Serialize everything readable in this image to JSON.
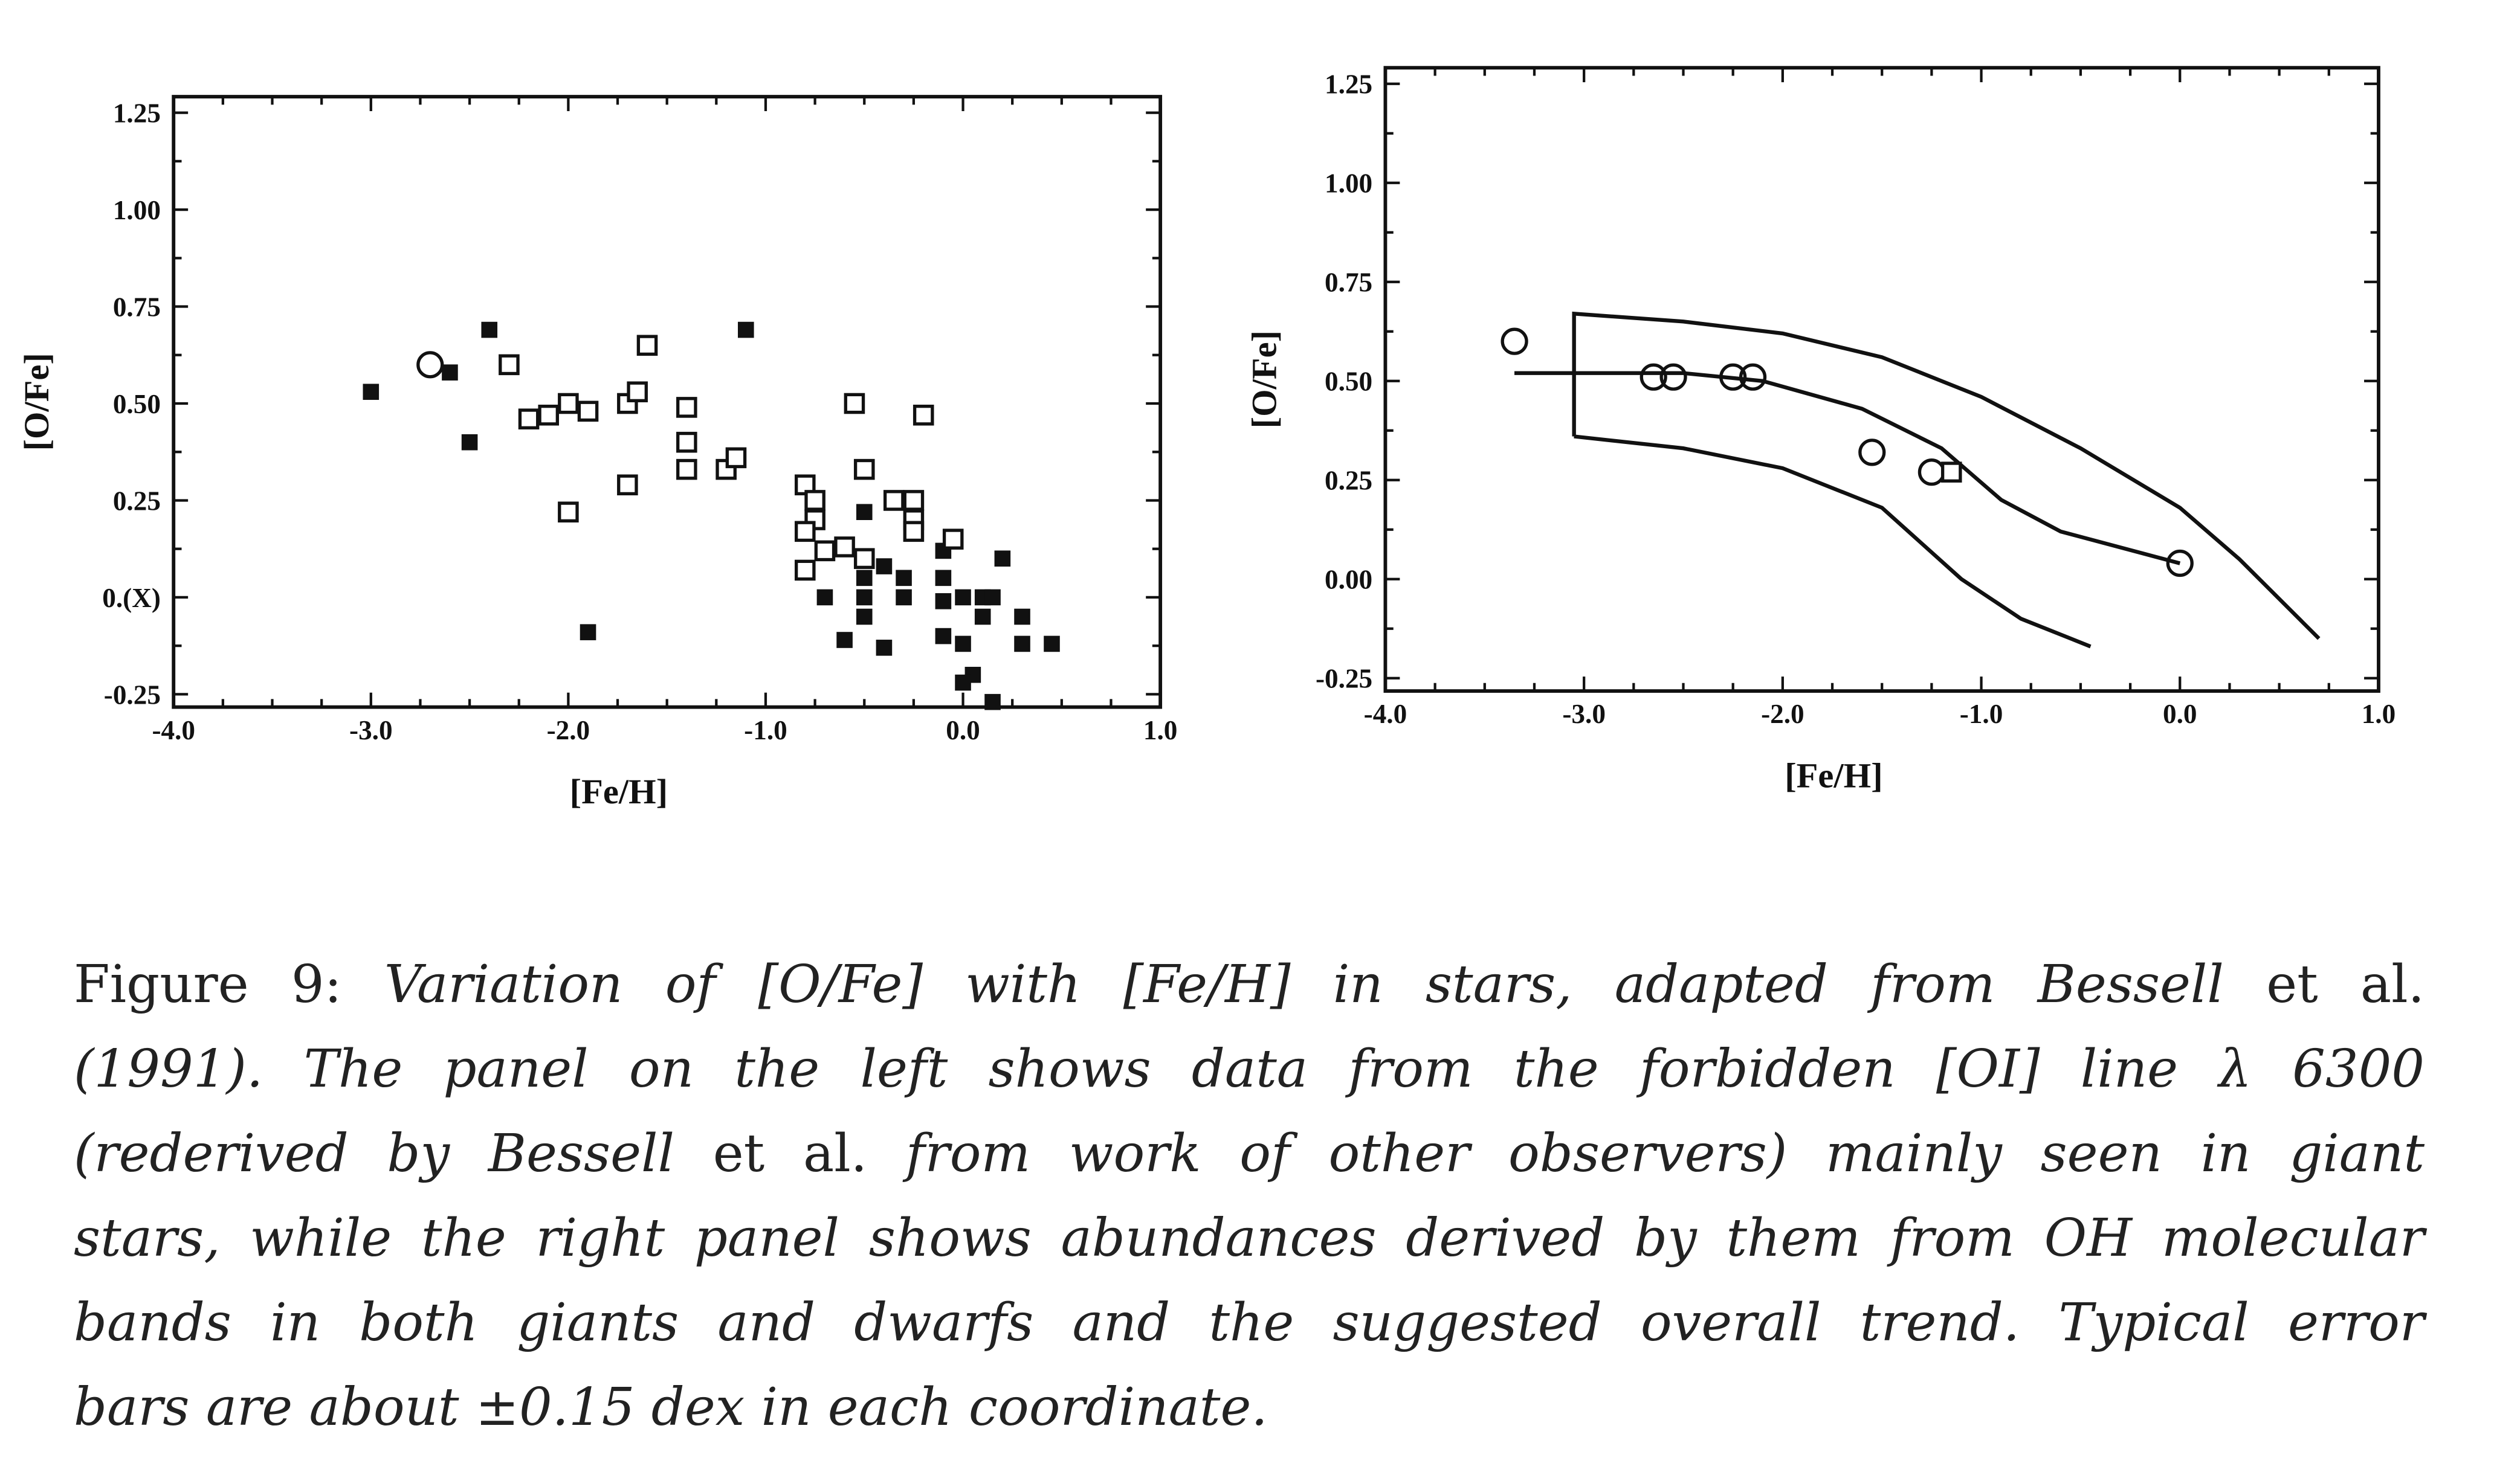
{
  "chart_data": [
    {
      "type": "scatter",
      "xlabel": "[Fe/H]",
      "ylabel": "[O/Fe]",
      "xlim": [
        -4.0,
        1.0
      ],
      "ylim": [
        -0.25,
        1.25
      ],
      "xticks": [
        "-4.0",
        "-3.0",
        "-2.0",
        "-1.0",
        "0.0",
        "1.0"
      ],
      "xtick_values": [
        -4,
        -3,
        -2,
        -1,
        0,
        1
      ],
      "yticks": [
        "1.25",
        "1.00",
        "0.75",
        "0.50",
        "0.25",
        "0.(X)",
        "-0.25"
      ],
      "ytick_values": [
        1.25,
        1.0,
        0.75,
        0.5,
        0.25,
        0.0,
        -0.25
      ],
      "grid": false,
      "series": [
        {
          "marker": "filled-square",
          "points": [
            [
              -3.0,
              0.53
            ],
            [
              -2.6,
              0.58
            ],
            [
              -2.4,
              0.69
            ],
            [
              -2.5,
              0.4
            ],
            [
              -1.9,
              -0.09
            ],
            [
              -1.1,
              0.69
            ],
            [
              -0.5,
              0.22
            ],
            [
              -0.5,
              0.05
            ],
            [
              -0.4,
              0.08
            ],
            [
              -0.3,
              0.05
            ],
            [
              -0.7,
              0.0
            ],
            [
              -0.5,
              0.0
            ],
            [
              -0.3,
              0.0
            ],
            [
              -0.1,
              0.12
            ],
            [
              -0.1,
              0.05
            ],
            [
              -0.1,
              -0.01
            ],
            [
              0.0,
              0.0
            ],
            [
              0.1,
              0.0
            ],
            [
              0.15,
              0.0
            ],
            [
              0.2,
              0.1
            ],
            [
              -0.5,
              -0.05
            ],
            [
              -0.1,
              -0.1
            ],
            [
              0.0,
              -0.12
            ],
            [
              0.1,
              -0.05
            ],
            [
              0.3,
              -0.05
            ],
            [
              0.3,
              -0.12
            ],
            [
              0.45,
              -0.12
            ],
            [
              -0.6,
              -0.11
            ],
            [
              -0.4,
              -0.13
            ],
            [
              0.05,
              -0.2
            ],
            [
              0.0,
              -0.22
            ],
            [
              0.15,
              -0.27
            ]
          ]
        },
        {
          "marker": "open-square",
          "points": [
            [
              -2.3,
              0.6
            ],
            [
              -2.2,
              0.46
            ],
            [
              -2.1,
              0.47
            ],
            [
              -2.0,
              0.5
            ],
            [
              -1.9,
              0.48
            ],
            [
              -1.7,
              0.5
            ],
            [
              -1.65,
              0.53
            ],
            [
              -1.6,
              0.65
            ],
            [
              -1.4,
              0.49
            ],
            [
              -1.4,
              0.4
            ],
            [
              -1.4,
              0.33
            ],
            [
              -1.2,
              0.33
            ],
            [
              -1.15,
              0.36
            ],
            [
              -2.0,
              0.22
            ],
            [
              -1.7,
              0.29
            ],
            [
              -0.8,
              0.29
            ],
            [
              -0.75,
              0.25
            ],
            [
              -0.75,
              0.2
            ],
            [
              -0.8,
              0.17
            ],
            [
              -0.7,
              0.12
            ],
            [
              -0.8,
              0.07
            ],
            [
              -0.6,
              0.13
            ],
            [
              -0.55,
              0.5
            ],
            [
              -0.5,
              0.33
            ],
            [
              -0.2,
              0.47
            ],
            [
              -0.35,
              0.25
            ],
            [
              -0.25,
              0.25
            ],
            [
              -0.25,
              0.2
            ],
            [
              -0.25,
              0.17
            ],
            [
              -0.05,
              0.15
            ],
            [
              -0.5,
              0.1
            ]
          ]
        },
        {
          "marker": "open-circle",
          "points": [
            [
              -2.7,
              0.6
            ]
          ]
        }
      ]
    },
    {
      "type": "scatter",
      "xlabel": "[Fe/H]",
      "ylabel": "[O/Fe]",
      "xlim": [
        -4.0,
        1.0
      ],
      "ylim": [
        -0.25,
        1.25
      ],
      "xticks": [
        "-4.0",
        "-3.0",
        "-2.0",
        "-1.0",
        "0.0",
        "1.0"
      ],
      "xtick_values": [
        -4,
        -3,
        -2,
        -1,
        0,
        1
      ],
      "yticks": [
        "1.25",
        "1.00",
        "0.75",
        "0.50",
        "0.25",
        "0.00",
        "-0.25"
      ],
      "ytick_values": [
        1.25,
        1.0,
        0.75,
        0.5,
        0.25,
        0.0,
        -0.25
      ],
      "grid": false,
      "series": [
        {
          "marker": "open-circle",
          "points": [
            [
              -3.35,
              0.6
            ],
            [
              -2.65,
              0.51
            ],
            [
              -2.55,
              0.51
            ],
            [
              -2.25,
              0.51
            ],
            [
              -2.15,
              0.51
            ],
            [
              -1.55,
              0.32
            ],
            [
              -1.25,
              0.27
            ],
            [
              0.0,
              0.04
            ]
          ]
        },
        {
          "marker": "open-square",
          "points": [
            [
              -1.15,
              0.27
            ]
          ]
        }
      ],
      "lines": [
        {
          "role": "trend",
          "points": [
            [
              -3.35,
              0.52
            ],
            [
              -2.5,
              0.52
            ],
            [
              -2.1,
              0.5
            ],
            [
              -1.6,
              0.43
            ],
            [
              -1.2,
              0.33
            ],
            [
              -0.9,
              0.2
            ],
            [
              -0.6,
              0.12
            ],
            [
              0.0,
              0.04
            ]
          ]
        },
        {
          "role": "band-upper",
          "points": [
            [
              -3.05,
              0.36
            ],
            [
              -3.05,
              0.67
            ],
            [
              -2.5,
              0.65
            ],
            [
              -2.0,
              0.62
            ],
            [
              -1.5,
              0.56
            ],
            [
              -1.0,
              0.46
            ],
            [
              -0.5,
              0.33
            ],
            [
              0.0,
              0.18
            ],
            [
              0.3,
              0.05
            ],
            [
              0.7,
              -0.15
            ]
          ]
        },
        {
          "role": "band-lower",
          "points": [
            [
              -3.05,
              0.36
            ],
            [
              -2.5,
              0.33
            ],
            [
              -2.0,
              0.28
            ],
            [
              -1.5,
              0.18
            ],
            [
              -1.1,
              0.0
            ],
            [
              -0.8,
              -0.1
            ],
            [
              -0.45,
              -0.17
            ]
          ]
        }
      ]
    }
  ],
  "caption": {
    "l1a": "Figure 9:",
    "l1b": "Variation of [O/Fe] with [Fe/H] in stars, adapted from Bessell",
    "l1c": "et al.",
    "l2": "(1991). The panel on the left shows data from the forbidden [OI] line λ 6300",
    "l3a": "(rederived by Bessell",
    "l3b": "et al.",
    "l3c": "from work of other observers) mainly seen in giant",
    "l4": "stars, while the right panel shows abundances derived by them from OH molecular",
    "l5": "bands in both giants and dwarfs and the suggested overall trend. Typical error",
    "l6": "bars are about ±0.15 dex in each coordinate."
  }
}
